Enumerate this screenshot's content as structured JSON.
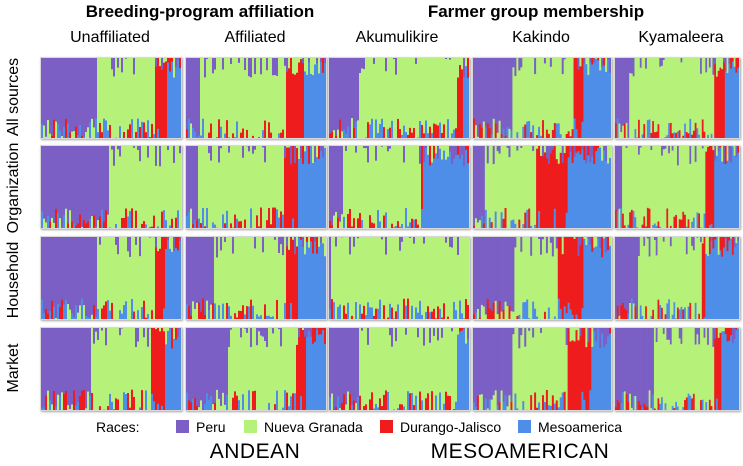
{
  "chart_data": {
    "type": "stacked-bar-structure",
    "group_titles": [
      "Breeding-program affiliation",
      "Farmer group membership"
    ],
    "columns": [
      "Unaffiliated",
      "Affiliated",
      "Akumulikire",
      "Kakindo",
      "Kyamaleera"
    ],
    "rows": [
      "All sources",
      "Organization",
      "Household",
      "Market"
    ],
    "legend_title": "Races:",
    "races": [
      {
        "name": "Peru",
        "color": "#7b5fc4"
      },
      {
        "name": "Nueva Granada",
        "color": "#b6f27a"
      },
      {
        "name": "Durango-Jalisco",
        "color": "#ee1c1c"
      },
      {
        "name": "Mesoamerica",
        "color": "#4f8ee8"
      }
    ],
    "bottom_labels": [
      "ANDEAN",
      "MESOAMERICAN"
    ],
    "panels": [
      [
        {
          "peru": 0.4,
          "ng": 0.42,
          "dj": 0.08,
          "meso": 0.1
        },
        {
          "peru": 0.1,
          "ng": 0.62,
          "dj": 0.12,
          "meso": 0.16
        },
        {
          "peru": 0.22,
          "ng": 0.7,
          "dj": 0.03,
          "meso": 0.05
        },
        {
          "peru": 0.28,
          "ng": 0.45,
          "dj": 0.07,
          "meso": 0.2
        },
        {
          "peru": 0.12,
          "ng": 0.68,
          "dj": 0.08,
          "meso": 0.12
        }
      ],
      [
        {
          "peru": 0.48,
          "ng": 0.52,
          "dj": 0.0,
          "meso": 0.0
        },
        {
          "peru": 0.08,
          "ng": 0.62,
          "dj": 0.1,
          "meso": 0.2
        },
        {
          "peru": 0.1,
          "ng": 0.55,
          "dj": 0.02,
          "meso": 0.33
        },
        {
          "peru": 0.08,
          "ng": 0.38,
          "dj": 0.22,
          "meso": 0.32
        },
        {
          "peru": 0.05,
          "ng": 0.68,
          "dj": 0.07,
          "meso": 0.2
        }
      ],
      [
        {
          "peru": 0.4,
          "ng": 0.42,
          "dj": 0.06,
          "meso": 0.12
        },
        {
          "peru": 0.2,
          "ng": 0.52,
          "dj": 0.08,
          "meso": 0.2
        },
        {
          "peru": 0.02,
          "ng": 0.98,
          "dj": 0.0,
          "meso": 0.0
        },
        {
          "peru": 0.3,
          "ng": 0.32,
          "dj": 0.18,
          "meso": 0.2
        },
        {
          "peru": 0.18,
          "ng": 0.52,
          "dj": 0.03,
          "meso": 0.27
        }
      ],
      [
        {
          "peru": 0.35,
          "ng": 0.43,
          "dj": 0.1,
          "meso": 0.12
        },
        {
          "peru": 0.3,
          "ng": 0.48,
          "dj": 0.08,
          "meso": 0.14
        },
        {
          "peru": 0.22,
          "ng": 0.7,
          "dj": 0.0,
          "meso": 0.08
        },
        {
          "peru": 0.28,
          "ng": 0.4,
          "dj": 0.18,
          "meso": 0.14
        },
        {
          "peru": 0.32,
          "ng": 0.48,
          "dj": 0.06,
          "meso": 0.14
        }
      ]
    ]
  }
}
